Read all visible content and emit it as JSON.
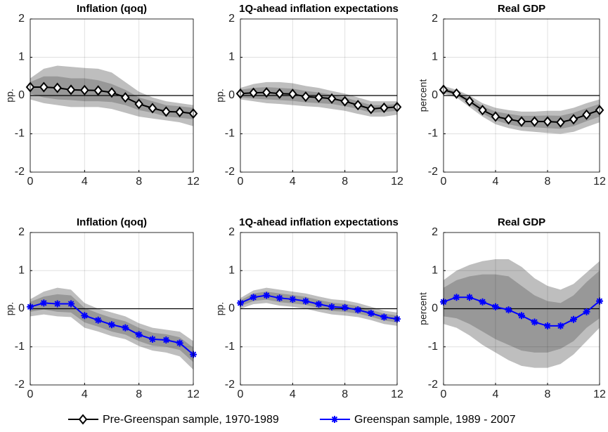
{
  "chart_data": [
    {
      "type": "line",
      "title": "Inflation (qoq)",
      "ylabel": "pp.",
      "x": [
        0,
        1,
        2,
        3,
        4,
        5,
        6,
        7,
        8,
        9,
        10,
        11,
        12
      ],
      "xlim": [
        0,
        12
      ],
      "ylim": [
        -2,
        2
      ],
      "xticks": [
        0,
        4,
        8,
        12
      ],
      "yticks": [
        -2,
        -1,
        0,
        1,
        2
      ],
      "grid": true,
      "bands": [
        {
          "color": "#bebebe",
          "lower": [
            -0.1,
            -0.2,
            -0.25,
            -0.3,
            -0.3,
            -0.3,
            -0.35,
            -0.45,
            -0.55,
            -0.6,
            -0.65,
            -0.7,
            -0.8
          ],
          "upper": [
            0.45,
            0.7,
            0.78,
            0.75,
            0.72,
            0.7,
            0.6,
            0.35,
            0.1,
            -0.05,
            -0.15,
            -0.2,
            -0.25
          ]
        },
        {
          "color": "#989898",
          "lower": [
            0.05,
            -0.05,
            -0.1,
            -0.12,
            -0.15,
            -0.15,
            -0.17,
            -0.25,
            -0.38,
            -0.45,
            -0.55,
            -0.58,
            -0.62
          ],
          "upper": [
            0.35,
            0.5,
            0.5,
            0.45,
            0.45,
            0.4,
            0.3,
            0.15,
            -0.05,
            -0.15,
            -0.25,
            -0.28,
            -0.32
          ]
        }
      ],
      "series": [
        {
          "name": "Pre-Greenspan sample, 1970-1989",
          "color": "#000000",
          "marker": "diamond",
          "values": [
            0.22,
            0.22,
            0.2,
            0.15,
            0.14,
            0.13,
            0.08,
            -0.05,
            -0.22,
            -0.33,
            -0.42,
            -0.43,
            -0.47
          ]
        }
      ]
    },
    {
      "type": "line",
      "title": "1Q-ahead inflation expectations",
      "ylabel": "pp.",
      "x": [
        0,
        1,
        2,
        3,
        4,
        5,
        6,
        7,
        8,
        9,
        10,
        11,
        12
      ],
      "xlim": [
        0,
        12
      ],
      "ylim": [
        -2,
        2
      ],
      "xticks": [
        0,
        4,
        8,
        12
      ],
      "yticks": [
        -2,
        -1,
        0,
        1,
        2
      ],
      "grid": true,
      "bands": [
        {
          "color": "#bebebe",
          "lower": [
            -0.1,
            -0.15,
            -0.2,
            -0.22,
            -0.25,
            -0.28,
            -0.3,
            -0.35,
            -0.4,
            -0.48,
            -0.55,
            -0.55,
            -0.5
          ],
          "upper": [
            0.2,
            0.3,
            0.35,
            0.35,
            0.32,
            0.25,
            0.2,
            0.12,
            0.05,
            -0.05,
            -0.15,
            -0.15,
            -0.15
          ]
        },
        {
          "color": "#989898",
          "lower": [
            -0.05,
            -0.08,
            -0.1,
            -0.12,
            -0.14,
            -0.18,
            -0.2,
            -0.22,
            -0.28,
            -0.35,
            -0.45,
            -0.43,
            -0.4
          ],
          "upper": [
            0.15,
            0.2,
            0.22,
            0.2,
            0.18,
            0.12,
            0.08,
            0.02,
            -0.05,
            -0.15,
            -0.25,
            -0.25,
            -0.22
          ]
        }
      ],
      "series": [
        {
          "color": "#000000",
          "marker": "diamond",
          "values": [
            0.05,
            0.07,
            0.08,
            0.05,
            0.04,
            -0.03,
            -0.05,
            -0.08,
            -0.15,
            -0.25,
            -0.35,
            -0.32,
            -0.3
          ]
        }
      ]
    },
    {
      "type": "line",
      "title": "Real GDP",
      "ylabel": "percent",
      "x": [
        0,
        1,
        2,
        3,
        4,
        5,
        6,
        7,
        8,
        9,
        10,
        11,
        12
      ],
      "xlim": [
        0,
        12
      ],
      "ylim": [
        -2,
        2
      ],
      "xticks": [
        0,
        4,
        8,
        12
      ],
      "yticks": [
        -2,
        -1,
        0,
        1,
        2
      ],
      "grid": true,
      "bands": [
        {
          "color": "#bebebe",
          "lower": [
            0.05,
            -0.05,
            -0.3,
            -0.55,
            -0.75,
            -0.85,
            -0.92,
            -0.95,
            -0.98,
            -1.0,
            -0.95,
            -0.82,
            -0.7
          ],
          "upper": [
            0.25,
            0.15,
            0.0,
            -0.2,
            -0.32,
            -0.38,
            -0.42,
            -0.42,
            -0.4,
            -0.4,
            -0.32,
            -0.2,
            -0.1
          ]
        },
        {
          "color": "#989898",
          "lower": [
            0.1,
            0.0,
            -0.22,
            -0.47,
            -0.65,
            -0.75,
            -0.82,
            -0.83,
            -0.85,
            -0.87,
            -0.8,
            -0.67,
            -0.55
          ],
          "upper": [
            0.2,
            0.1,
            -0.08,
            -0.28,
            -0.42,
            -0.48,
            -0.53,
            -0.53,
            -0.52,
            -0.53,
            -0.45,
            -0.33,
            -0.22
          ]
        }
      ],
      "series": [
        {
          "color": "#000000",
          "marker": "diamond",
          "values": [
            0.15,
            0.05,
            -0.15,
            -0.38,
            -0.55,
            -0.62,
            -0.68,
            -0.68,
            -0.68,
            -0.7,
            -0.62,
            -0.5,
            -0.38
          ]
        }
      ]
    },
    {
      "type": "line",
      "title": "Inflation (qoq)",
      "ylabel": "pp.",
      "x": [
        0,
        1,
        2,
        3,
        4,
        5,
        6,
        7,
        8,
        9,
        10,
        11,
        12
      ],
      "xlim": [
        0,
        12
      ],
      "ylim": [
        -2,
        2
      ],
      "xticks": [
        0,
        4,
        8,
        12
      ],
      "yticks": [
        -2,
        -1,
        0,
        1,
        2
      ],
      "grid": true,
      "bands": [
        {
          "color": "#bebebe",
          "lower": [
            -0.2,
            -0.15,
            -0.2,
            -0.22,
            -0.5,
            -0.6,
            -0.72,
            -0.8,
            -0.98,
            -1.1,
            -1.15,
            -1.25,
            -1.6
          ],
          "upper": [
            0.25,
            0.45,
            0.55,
            0.5,
            0.15,
            0.0,
            -0.1,
            -0.2,
            -0.38,
            -0.5,
            -0.55,
            -0.6,
            -0.85
          ]
        },
        {
          "color": "#989898",
          "lower": [
            -0.08,
            -0.02,
            -0.08,
            -0.1,
            -0.36,
            -0.47,
            -0.6,
            -0.68,
            -0.85,
            -0.97,
            -1.0,
            -1.08,
            -1.4
          ],
          "upper": [
            0.18,
            0.32,
            0.38,
            0.35,
            0.02,
            -0.12,
            -0.24,
            -0.33,
            -0.5,
            -0.63,
            -0.67,
            -0.75,
            -1.02
          ]
        }
      ],
      "series": [
        {
          "name": "Greenspan sample, 1989 - 2007",
          "color": "#0000ff",
          "marker": "asterisk",
          "values": [
            0.05,
            0.15,
            0.13,
            0.13,
            -0.18,
            -0.3,
            -0.42,
            -0.5,
            -0.68,
            -0.8,
            -0.82,
            -0.9,
            -1.2
          ]
        }
      ]
    },
    {
      "type": "line",
      "title": "1Q-ahead inflation expectations",
      "ylabel": "pp.",
      "x": [
        0,
        1,
        2,
        3,
        4,
        5,
        6,
        7,
        8,
        9,
        10,
        11,
        12
      ],
      "xlim": [
        0,
        12
      ],
      "ylim": [
        -2,
        2
      ],
      "xticks": [
        0,
        4,
        8,
        12
      ],
      "yticks": [
        -2,
        -1,
        0,
        1,
        2
      ],
      "grid": true,
      "bands": [
        {
          "color": "#bebebe",
          "lower": [
            0.0,
            0.12,
            0.15,
            0.08,
            0.05,
            0.0,
            -0.08,
            -0.15,
            -0.18,
            -0.22,
            -0.3,
            -0.4,
            -0.45
          ],
          "upper": [
            0.28,
            0.48,
            0.55,
            0.5,
            0.45,
            0.4,
            0.32,
            0.25,
            0.22,
            0.15,
            0.05,
            -0.05,
            -0.1
          ]
        },
        {
          "color": "#989898",
          "lower": [
            0.07,
            0.2,
            0.24,
            0.17,
            0.14,
            0.1,
            0.02,
            -0.06,
            -0.08,
            -0.13,
            -0.21,
            -0.31,
            -0.36
          ],
          "upper": [
            0.22,
            0.4,
            0.45,
            0.4,
            0.36,
            0.31,
            0.23,
            0.16,
            0.13,
            0.07,
            -0.03,
            -0.13,
            -0.18
          ]
        }
      ],
      "series": [
        {
          "color": "#0000ff",
          "marker": "asterisk",
          "values": [
            0.15,
            0.3,
            0.35,
            0.28,
            0.25,
            0.2,
            0.12,
            0.05,
            0.03,
            -0.03,
            -0.12,
            -0.22,
            -0.27
          ]
        }
      ]
    },
    {
      "type": "line",
      "title": "Real GDP",
      "ylabel": "percent",
      "x": [
        0,
        1,
        2,
        3,
        4,
        5,
        6,
        7,
        8,
        9,
        10,
        11,
        12
      ],
      "xlim": [
        0,
        12
      ],
      "ylim": [
        -2,
        2
      ],
      "xticks": [
        0,
        4,
        8,
        12
      ],
      "yticks": [
        -2,
        -1,
        0,
        1,
        2
      ],
      "grid": true,
      "bands": [
        {
          "color": "#bebebe",
          "lower": [
            -0.4,
            -0.5,
            -0.7,
            -0.95,
            -1.15,
            -1.35,
            -1.5,
            -1.55,
            -1.55,
            -1.45,
            -1.2,
            -0.85,
            -0.5
          ],
          "upper": [
            0.75,
            1.0,
            1.15,
            1.25,
            1.3,
            1.3,
            1.1,
            0.8,
            0.6,
            0.5,
            0.65,
            0.95,
            1.25
          ]
        },
        {
          "color": "#989898",
          "lower": [
            -0.2,
            -0.25,
            -0.4,
            -0.6,
            -0.8,
            -0.95,
            -1.1,
            -1.15,
            -1.15,
            -1.05,
            -0.85,
            -0.5,
            -0.25
          ],
          "upper": [
            0.55,
            0.75,
            0.85,
            0.9,
            0.9,
            0.85,
            0.6,
            0.35,
            0.2,
            0.15,
            0.35,
            0.7,
            1.0
          ]
        }
      ],
      "series": [
        {
          "color": "#0000ff",
          "marker": "asterisk",
          "values": [
            0.18,
            0.3,
            0.3,
            0.18,
            0.05,
            -0.03,
            -0.18,
            -0.35,
            -0.45,
            -0.45,
            -0.28,
            -0.08,
            0.2
          ]
        }
      ]
    }
  ]
}
